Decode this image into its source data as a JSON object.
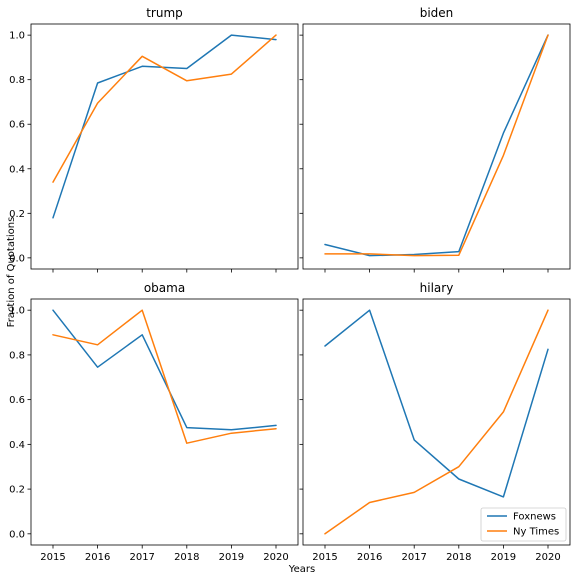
{
  "chart_data": {
    "type": "line",
    "ylabel": "Fraction of Quotations",
    "xlabel": "Years",
    "x": [
      2015,
      2016,
      2017,
      2018,
      2019,
      2020
    ],
    "xticks": [
      "2015",
      "2016",
      "2017",
      "2018",
      "2019",
      "2020"
    ],
    "yticks": [
      "0.0",
      "0.2",
      "0.4",
      "0.6",
      "0.8",
      "1.0"
    ],
    "ylim": [
      -0.05,
      1.05
    ],
    "grid": false,
    "legend": {
      "placement": "lower-right",
      "entries": [
        "Foxnews",
        "Ny Times"
      ]
    },
    "colors": {
      "Foxnews": "#1f77b4",
      "Ny Times": "#ff7f0e"
    },
    "panels": [
      {
        "title": "trump",
        "series": [
          {
            "name": "Foxnews",
            "values": [
              0.18,
              0.785,
              0.86,
              0.85,
              1.0,
              0.98
            ]
          },
          {
            "name": "Ny Times",
            "values": [
              0.34,
              0.695,
              0.905,
              0.795,
              0.825,
              1.0
            ]
          }
        ]
      },
      {
        "title": "biden",
        "series": [
          {
            "name": "Foxnews",
            "values": [
              0.06,
              0.01,
              0.015,
              0.028,
              0.56,
              1.0
            ]
          },
          {
            "name": "Ny Times",
            "values": [
              0.018,
              0.018,
              0.01,
              0.012,
              0.46,
              1.0
            ]
          }
        ]
      },
      {
        "title": "obama",
        "series": [
          {
            "name": "Foxnews",
            "values": [
              1.0,
              0.745,
              0.89,
              0.475,
              0.465,
              0.485
            ]
          },
          {
            "name": "Ny Times",
            "values": [
              0.89,
              0.845,
              1.0,
              0.405,
              0.45,
              0.47
            ]
          }
        ]
      },
      {
        "title": "hilary",
        "series": [
          {
            "name": "Foxnews",
            "values": [
              0.84,
              1.0,
              0.42,
              0.245,
              0.165,
              0.825
            ]
          },
          {
            "name": "Ny Times",
            "values": [
              0.0,
              0.14,
              0.185,
              0.3,
              0.545,
              1.0
            ]
          }
        ]
      }
    ]
  }
}
